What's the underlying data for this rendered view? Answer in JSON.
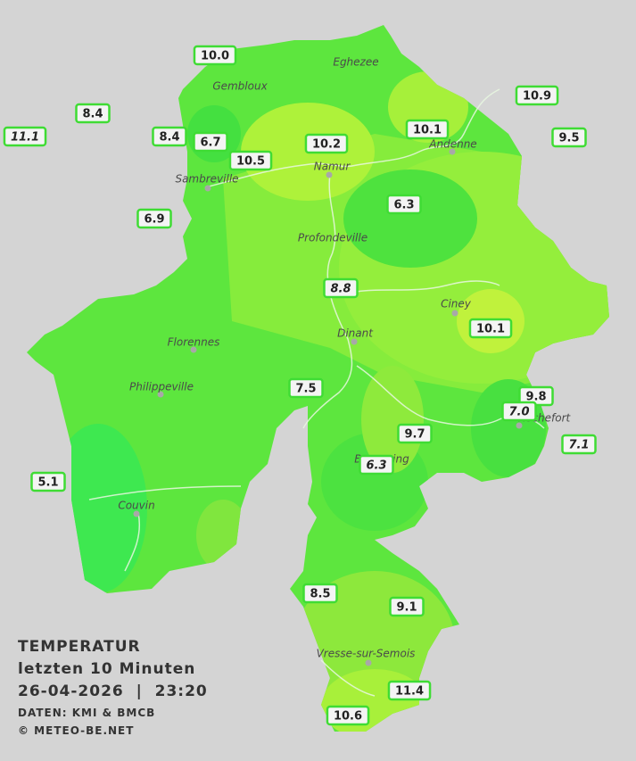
{
  "legend": {
    "title": "TEMPERATUR",
    "period": "letzten 10 Minuten",
    "datetime": "26-04-2026  |  23:20",
    "source": "DATEN: KMI & BMCB",
    "copyright": "© METEO-BE.NET"
  },
  "towns": [
    {
      "name": "Eghezee"
    },
    {
      "name": "Gembloux"
    },
    {
      "name": "Andenne"
    },
    {
      "name": "Namur"
    },
    {
      "name": "Sambreville"
    },
    {
      "name": "Profondeville"
    },
    {
      "name": "Ciney"
    },
    {
      "name": "Dinant"
    },
    {
      "name": "Florennes"
    },
    {
      "name": "Philippeville"
    },
    {
      "name": "Rochefort"
    },
    {
      "name": "Beauraing"
    },
    {
      "name": "Couvin"
    },
    {
      "name": "Vresse-sur-Semois"
    }
  ],
  "stations": [
    {
      "value": "10.0",
      "italic": false
    },
    {
      "value": "8.4",
      "italic": false
    },
    {
      "value": "11.1",
      "italic": true
    },
    {
      "value": "8.4",
      "italic": false
    },
    {
      "value": "6.7",
      "italic": false
    },
    {
      "value": "10.5",
      "italic": false
    },
    {
      "value": "10.2",
      "italic": false
    },
    {
      "value": "10.1",
      "italic": false
    },
    {
      "value": "10.9",
      "italic": false
    },
    {
      "value": "9.5",
      "italic": false
    },
    {
      "value": "6.9",
      "italic": false
    },
    {
      "value": "6.3",
      "italic": false
    },
    {
      "value": "8.8",
      "italic": true
    },
    {
      "value": "10.1",
      "italic": false
    },
    {
      "value": "7.5",
      "italic": false
    },
    {
      "value": "9.8",
      "italic": false
    },
    {
      "value": "7.0",
      "italic": true
    },
    {
      "value": "9.7",
      "italic": false
    },
    {
      "value": "7.1",
      "italic": true
    },
    {
      "value": "6.3",
      "italic": true
    },
    {
      "value": "5.1",
      "italic": false
    },
    {
      "value": "8.5",
      "italic": false
    },
    {
      "value": "9.1",
      "italic": false
    },
    {
      "value": "11.4",
      "italic": false
    },
    {
      "value": "10.6",
      "italic": false
    }
  ]
}
